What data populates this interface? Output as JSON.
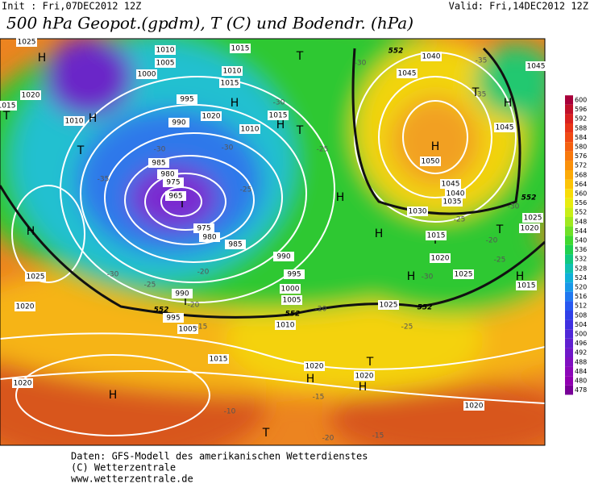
{
  "header": {
    "init": "Init : Fri,07DEC2012 12Z",
    "valid": "Valid: Fri,14DEC2012 12Z",
    "title": "500 hPa Geopot.(gpdm), T (C) und Bodendr. (hPa)"
  },
  "pressure_centers": [
    "H",
    "H",
    "T",
    "H",
    "T",
    "H",
    "T",
    "T",
    "H",
    "H",
    "H",
    "T",
    "H",
    "H",
    "T",
    "H",
    "T",
    "H",
    "T",
    "H",
    "H",
    "H",
    "T",
    "T",
    "T"
  ],
  "isobar_labels": [
    "1025",
    "1020",
    "1010",
    "1015",
    "1010",
    "1005",
    "1000",
    "995",
    "990",
    "1020",
    "1015",
    "1010",
    "1015",
    "1010",
    "1015",
    "985",
    "980",
    "975",
    "965",
    "975",
    "980",
    "985",
    "990",
    "995",
    "1000",
    "1005",
    "1010",
    "990",
    "995",
    "1005",
    "1015",
    "1020",
    "1025",
    "1020",
    "1020",
    "1020",
    "1020",
    "1025",
    "1030",
    "1035",
    "1040",
    "1045",
    "1050",
    "1045",
    "1040",
    "1045",
    "1045",
    "1025",
    "1020",
    "1015",
    "1020",
    "1015",
    "1025"
  ],
  "temperature_labels": [
    "-35",
    "-30",
    "-25",
    "-20",
    "-15",
    "-30",
    "-30",
    "-25",
    "-20",
    "-30",
    "-25",
    "-30",
    "-35",
    "-35",
    "-30",
    "-25",
    "-20",
    "-25",
    "-20",
    "-15",
    "-10",
    "-20",
    "-15",
    "-30",
    "-25"
  ],
  "geopotential_labels": [
    "552",
    "552",
    "552",
    "552",
    "552"
  ],
  "colorbar": {
    "levels": [
      600,
      596,
      592,
      588,
      584,
      580,
      576,
      572,
      568,
      564,
      560,
      556,
      552,
      548,
      544,
      540,
      536,
      532,
      528,
      524,
      520,
      516,
      512,
      508,
      504,
      500,
      496,
      492,
      488,
      484,
      480,
      478
    ],
    "colors": [
      "#a8003a",
      "#c0102a",
      "#d82020",
      "#e83418",
      "#f04a14",
      "#f46010",
      "#f8780c",
      "#fa900a",
      "#fcaa08",
      "#fcc408",
      "#f8dc08",
      "#e8ec10",
      "#c8ee18",
      "#a0e820",
      "#70e028",
      "#40d830",
      "#20d050",
      "#10c880",
      "#10c0b0",
      "#10b0d8",
      "#1898e8",
      "#2078f0",
      "#2858f0",
      "#3040e8",
      "#4030e0",
      "#5028d8",
      "#6020d0",
      "#7018c8",
      "#8010c0",
      "#8c08b8",
      "#9000b0",
      "#780098"
    ]
  },
  "footer": [
    "Daten: GFS-Modell des amerikanischen Wetterdienstes",
    "(C) Wetterzentrale",
    "www.wetterzentrale.de"
  ]
}
